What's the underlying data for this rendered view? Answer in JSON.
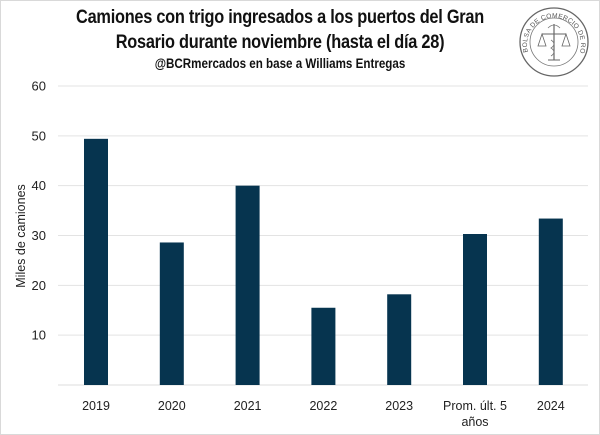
{
  "chart_data": {
    "type": "bar",
    "title_line1": "Camiones con trigo ingresados a los puertos del Gran",
    "title_line2": "Rosario durante noviembre (hasta el día 28)",
    "subtitle": "@BCRmercados en base a Williams Entregas",
    "xlabel": "",
    "ylabel": "Miles de camiones",
    "ylim": [
      0,
      60
    ],
    "yticks": [
      10,
      20,
      30,
      40,
      50,
      60
    ],
    "grid": true,
    "categories": [
      "2019",
      "2020",
      "2021",
      "2022",
      "2023",
      "Prom. últ. 5 años",
      "2024"
    ],
    "category_lines": [
      [
        "2019"
      ],
      [
        "2020"
      ],
      [
        "2021"
      ],
      [
        "2022"
      ],
      [
        "2023"
      ],
      [
        "Prom. últ. 5",
        "años"
      ],
      [
        "2024"
      ]
    ],
    "values": [
      49.4,
      28.6,
      40.0,
      15.5,
      18.2,
      30.3,
      33.4
    ],
    "bar_color": "#06344f",
    "grid_color": "#e3e3e3"
  },
  "logo": {
    "text": "BOLSA DE COMERCIO DE ROSARIO"
  }
}
